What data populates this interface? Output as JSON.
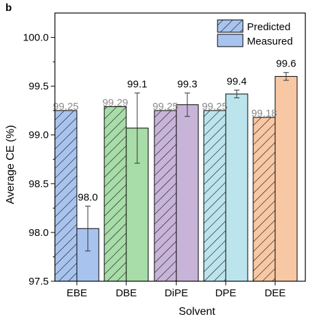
{
  "panel_label": "b",
  "chart_data": {
    "type": "bar",
    "xlabel": "Solvent",
    "ylabel": "Average CE (%)",
    "ylim": [
      97.5,
      100.25
    ],
    "yticks": [
      97.5,
      98.0,
      98.5,
      99.0,
      99.5,
      100.0
    ],
    "ytick_labels": [
      "97.5",
      "98.0",
      "98.5",
      "99.0",
      "99.5",
      "100.0"
    ],
    "categories": [
      "EBE",
      "DBE",
      "DiPE",
      "DPE",
      "DEE"
    ],
    "colors": [
      "#a8c4ee",
      "#a8dca8",
      "#c8b4d8",
      "#bce4ec",
      "#f8c8a4"
    ],
    "series": [
      {
        "name": "Predicted",
        "style": "hatched",
        "values": [
          99.25,
          99.29,
          99.25,
          99.25,
          99.18
        ],
        "value_labels": [
          "99.25",
          "99.29",
          "99.25",
          "99.25",
          "99.18"
        ]
      },
      {
        "name": "Measured",
        "style": "solid",
        "values": [
          98.04,
          99.07,
          99.31,
          99.42,
          99.6
        ],
        "errors": [
          0.23,
          0.36,
          0.12,
          0.04,
          0.04
        ],
        "value_labels": [
          "98.0",
          "99.1",
          "99.3",
          "99.4",
          "99.6"
        ]
      }
    ],
    "legend": {
      "placement": "top-right",
      "entries": [
        "Predicted",
        "Measured"
      ],
      "swatch_color": "#a8c4ee"
    }
  }
}
